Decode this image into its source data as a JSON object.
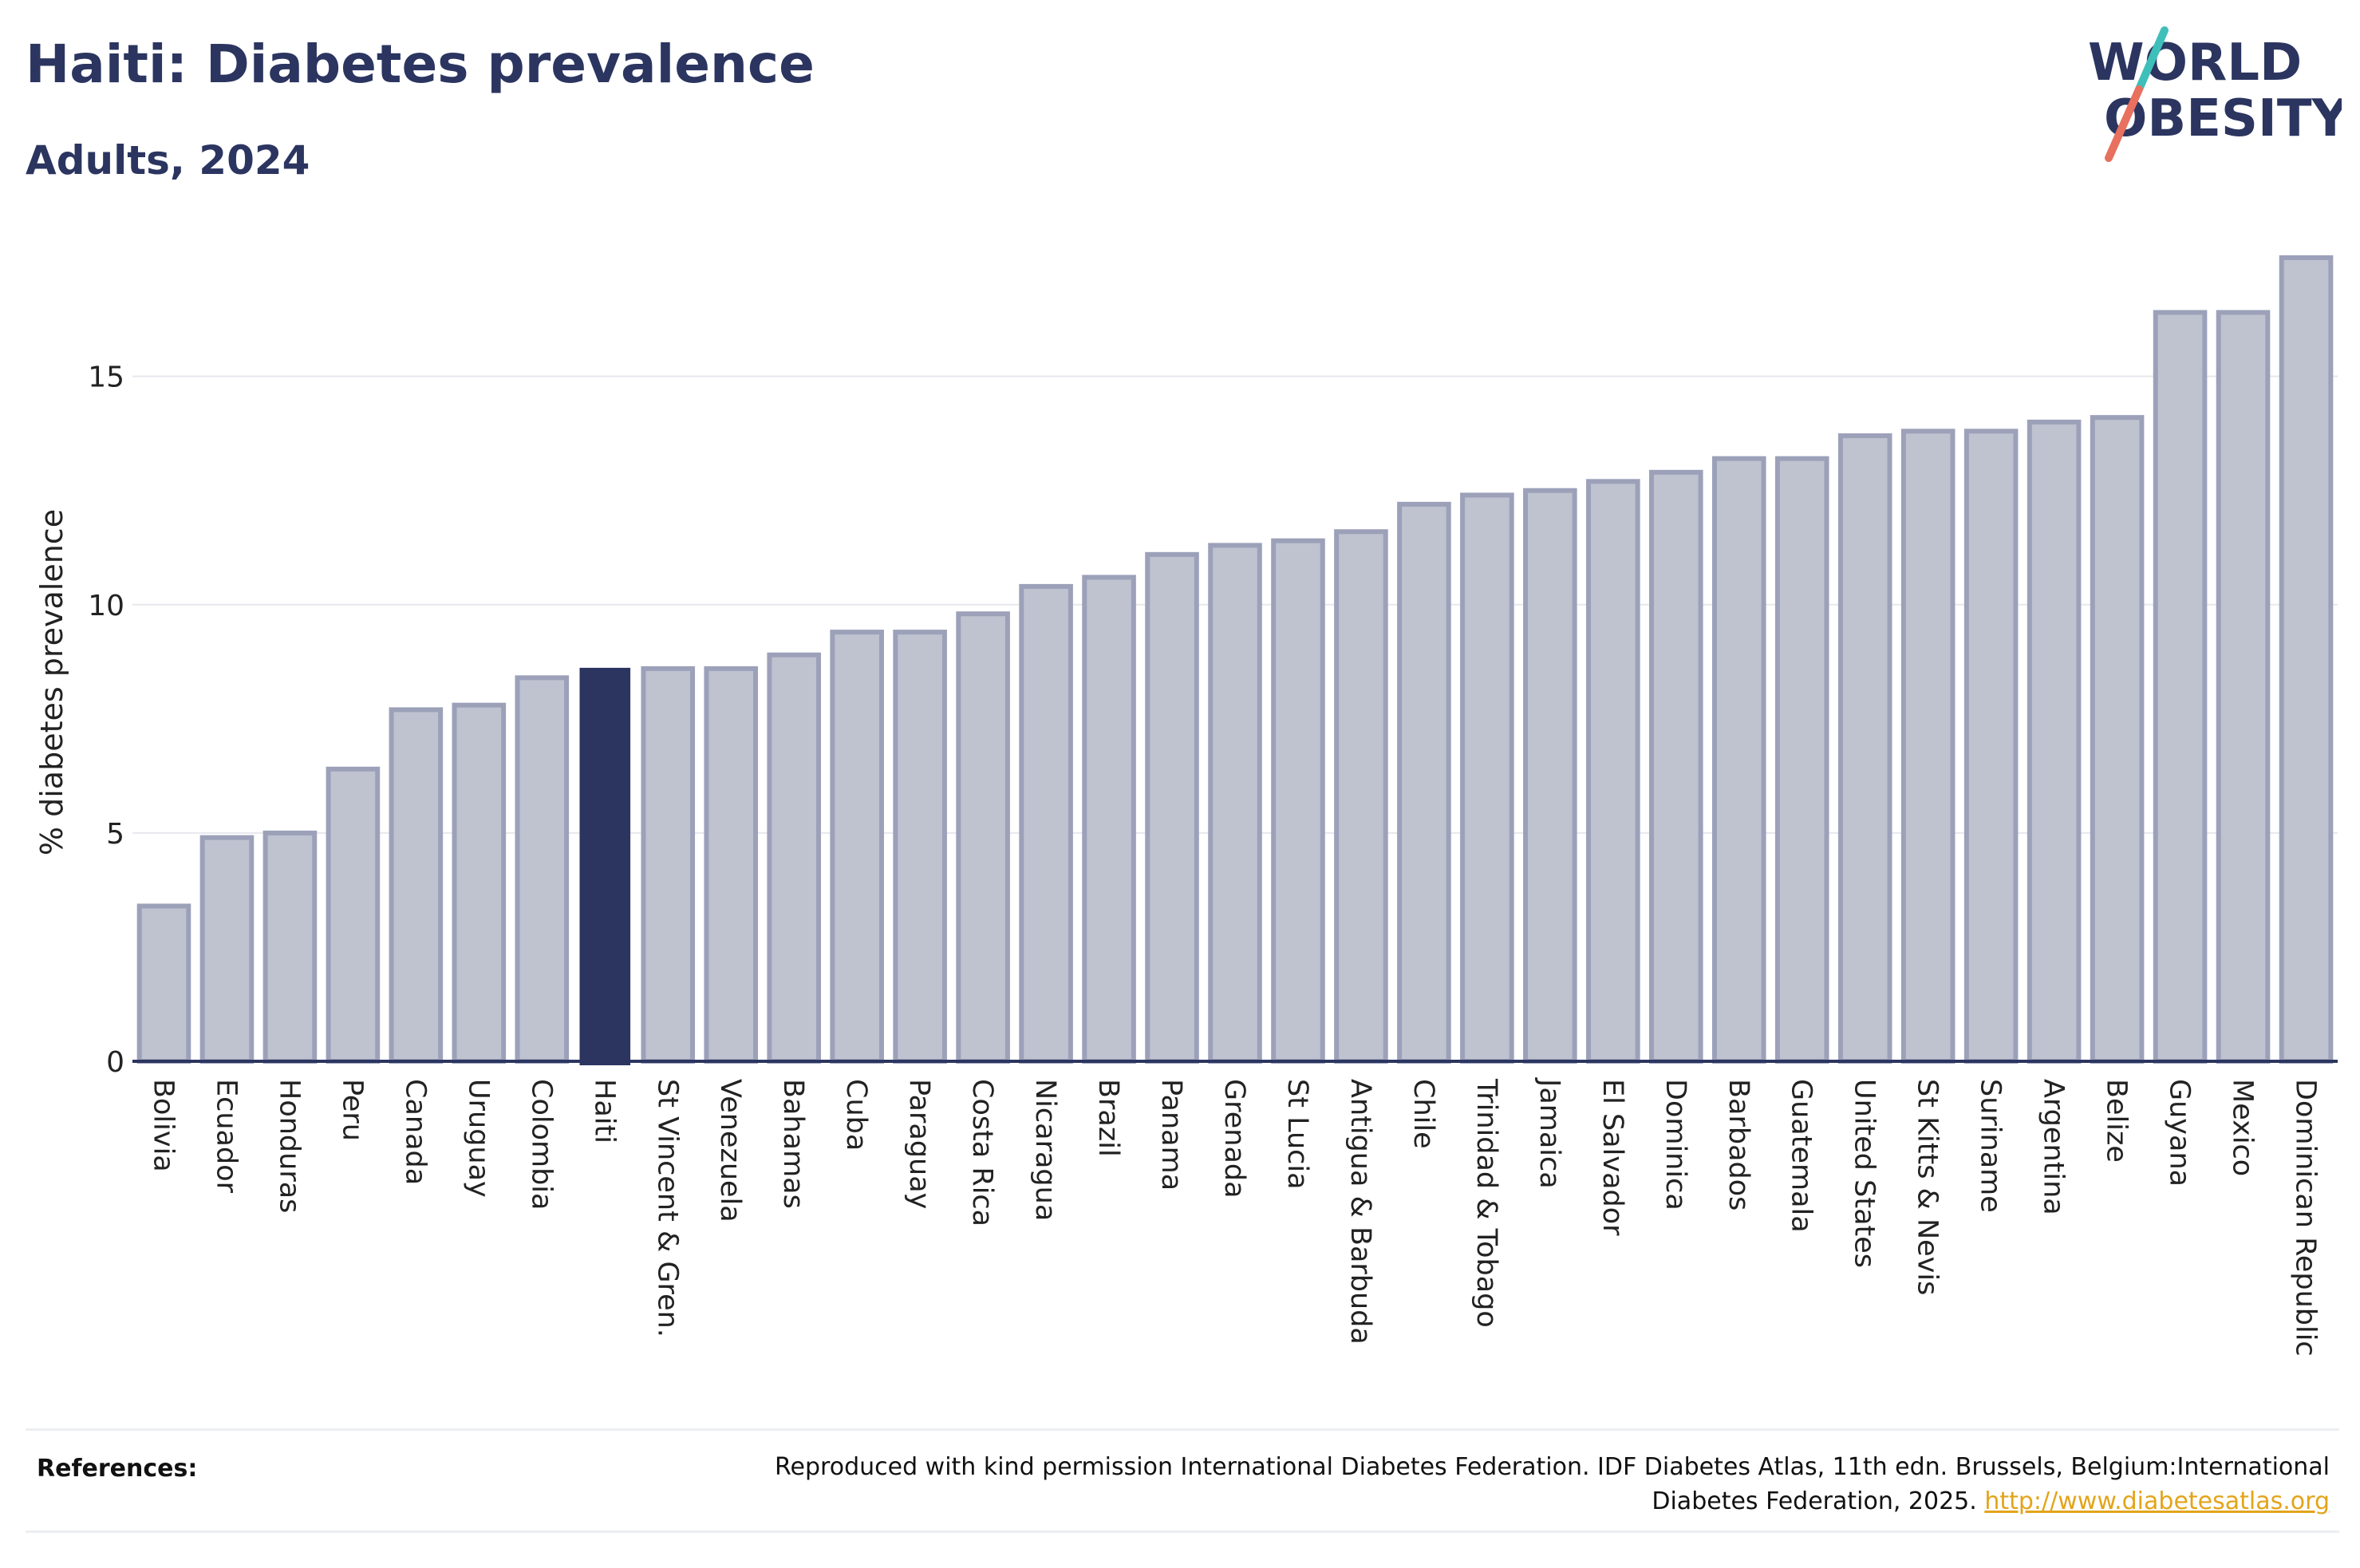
{
  "header": {
    "title": "Haiti: Diabetes prevalence",
    "subtitle": "Adults, 2024"
  },
  "logo": {
    "line1": "WORLD",
    "line2": "OBESITY",
    "slash_colors": [
      "#3fbfb9",
      "#e8705e"
    ]
  },
  "colors": {
    "highlight_bar": "#2b3560",
    "bar_fill": "#bfc2cf",
    "bar_stroke": "#9ca1b9",
    "text": "#2b3560",
    "link": "#e3a41b"
  },
  "chart_data": {
    "type": "bar",
    "title": "Haiti: Diabetes prevalence",
    "subtitle": "Adults, 2024",
    "xlabel": "",
    "ylabel": "% diabetes prevalence",
    "ylim": [
      0,
      18
    ],
    "yticks": [
      0,
      5,
      10,
      15
    ],
    "grid": true,
    "highlight": "Haiti",
    "categories": [
      "Bolivia",
      "Ecuador",
      "Honduras",
      "Peru",
      "Canada",
      "Uruguay",
      "Colombia",
      "Haiti",
      "St Vincent & Gren.",
      "Venezuela",
      "Bahamas",
      "Cuba",
      "Paraguay",
      "Costa Rica",
      "Nicaragua",
      "Brazil",
      "Panama",
      "Grenada",
      "St Lucia",
      "Antigua & Barbuda",
      "Chile",
      "Trinidad & Tobago",
      "Jamaica",
      "El Salvador",
      "Dominica",
      "Barbados",
      "Guatemala",
      "United States",
      "St Kitts & Nevis",
      "Suriname",
      "Argentina",
      "Belize",
      "Guyana",
      "Mexico",
      "Dominican Republic"
    ],
    "values": [
      3.4,
      4.9,
      5.0,
      6.4,
      7.7,
      7.8,
      8.4,
      8.6,
      8.6,
      8.6,
      8.9,
      9.4,
      9.4,
      9.8,
      10.4,
      10.6,
      11.1,
      11.3,
      11.4,
      11.6,
      12.2,
      12.4,
      12.5,
      12.7,
      12.9,
      13.2,
      13.2,
      13.7,
      13.8,
      13.8,
      14.0,
      14.1,
      16.4,
      16.4,
      17.6
    ]
  },
  "references": {
    "label": "References:",
    "text": "Reproduced with kind permission International Diabetes Federation. IDF Diabetes Atlas, 11th edn. Brussels, Belgium:International Diabetes Federation, 2025.",
    "link": "http://www.diabetesatlas.org"
  }
}
